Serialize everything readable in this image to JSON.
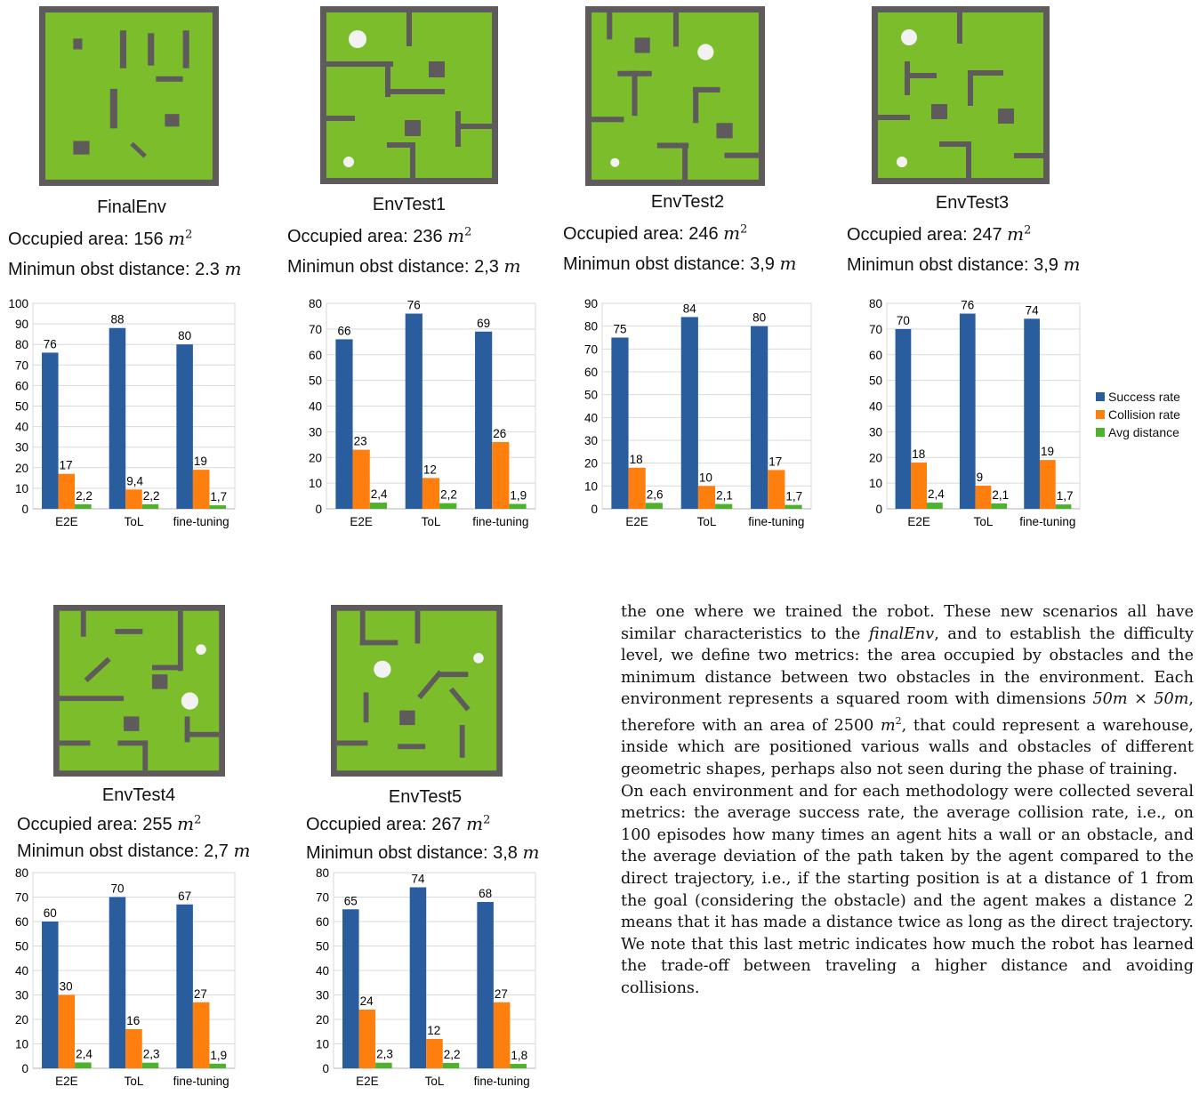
{
  "colors": {
    "success": "#2a5d9e",
    "collision": "#ff7f0e",
    "distance": "#4db32d",
    "map_green": "#7bbd2a",
    "map_wall": "#5f5a5c",
    "map_border": "#5f5a5c"
  },
  "legend": [
    {
      "label": "Success rate",
      "color": "#2a5d9e"
    },
    {
      "label": "Collision rate",
      "color": "#ff7f0e"
    },
    {
      "label": "Avg distance",
      "color": "#4db32d"
    }
  ],
  "environments": [
    {
      "name": "FinalEnv",
      "area_label": "Occupied area: 156 ",
      "area_unit": "m",
      "area_exp": "2",
      "dist_label": "Minimun obst distance: 2.3 ",
      "dist_unit": "m"
    },
    {
      "name": "EnvTest1",
      "area_label": "Occupied area: 236 ",
      "area_unit": "m",
      "area_exp": "2",
      "dist_label": "Minimun obst distance: 2,3 ",
      "dist_unit": "m"
    },
    {
      "name": "EnvTest2",
      "area_label": "Occupied area: 246 ",
      "area_unit": "m",
      "area_exp": "2",
      "dist_label": "Minimun obst distance: 3,9 ",
      "dist_unit": "m"
    },
    {
      "name": "EnvTest3",
      "area_label": "Occupied area: 247 ",
      "area_unit": "m",
      "area_exp": "2",
      "dist_label": "Minimun obst distance: 3,9 ",
      "dist_unit": "m"
    },
    {
      "name": "EnvTest4",
      "area_label": "Occupied area: 255 ",
      "area_unit": "m",
      "area_exp": "2",
      "dist_label": "Minimun obst distance: 2,7 ",
      "dist_unit": "m"
    },
    {
      "name": "EnvTest5",
      "area_label": "Occupied area: 267 ",
      "area_unit": "m",
      "area_exp": "2",
      "dist_label": "Minimun obst distance: 3,8 ",
      "dist_unit": "m"
    }
  ],
  "chart_data": [
    {
      "type": "bar",
      "categories": [
        "E2E",
        "ToL",
        "fine-tuning"
      ],
      "ylim": [
        0,
        100
      ],
      "yticks": [
        "0",
        "10",
        "20",
        "30",
        "40",
        "50",
        "60",
        "70",
        "80",
        "90",
        "100"
      ],
      "series": [
        {
          "name": "Success rate",
          "values": [
            76,
            88,
            80
          ],
          "labels": [
            "76",
            "88",
            "80"
          ]
        },
        {
          "name": "Collision rate",
          "values": [
            17,
            9.4,
            19
          ],
          "labels": [
            "17",
            "9,4",
            "19"
          ]
        },
        {
          "name": "Avg distance",
          "values": [
            2.2,
            2.2,
            1.7
          ],
          "labels": [
            "2,2",
            "2,2",
            "1,7"
          ]
        }
      ]
    },
    {
      "type": "bar",
      "categories": [
        "E2E",
        "ToL",
        "fine-tuning"
      ],
      "ylim": [
        0,
        80
      ],
      "yticks": [
        "0",
        "10",
        "20",
        "30",
        "40",
        "50",
        "60",
        "70",
        "80"
      ],
      "series": [
        {
          "name": "Success rate",
          "values": [
            66,
            76,
            69
          ],
          "labels": [
            "66",
            "76",
            "69"
          ]
        },
        {
          "name": "Collision rate",
          "values": [
            23,
            12,
            26
          ],
          "labels": [
            "23",
            "12",
            "26"
          ]
        },
        {
          "name": "Avg distance",
          "values": [
            2.4,
            2.2,
            1.9
          ],
          "labels": [
            "2,4",
            "2,2",
            "1,9"
          ]
        }
      ]
    },
    {
      "type": "bar",
      "categories": [
        "E2E",
        "ToL",
        "fine-tuning"
      ],
      "ylim": [
        0,
        90
      ],
      "yticks": [
        "0",
        "10",
        "20",
        "30",
        "40",
        "50",
        "60",
        "70",
        "80",
        "90"
      ],
      "series": [
        {
          "name": "Success rate",
          "values": [
            75,
            84,
            80
          ],
          "labels": [
            "75",
            "84",
            "80"
          ]
        },
        {
          "name": "Collision rate",
          "values": [
            18,
            10,
            17
          ],
          "labels": [
            "18",
            "10",
            "17"
          ]
        },
        {
          "name": "Avg distance",
          "values": [
            2.6,
            2.1,
            1.7
          ],
          "labels": [
            "2,6",
            "2,1",
            "1,7"
          ]
        }
      ]
    },
    {
      "type": "bar",
      "categories": [
        "E2E",
        "ToL",
        "fine-tuning"
      ],
      "ylim": [
        0,
        80
      ],
      "yticks": [
        "0",
        "10",
        "20",
        "30",
        "40",
        "50",
        "60",
        "70",
        "80"
      ],
      "series": [
        {
          "name": "Success rate",
          "values": [
            70,
            76,
            74
          ],
          "labels": [
            "70",
            "76",
            "74"
          ]
        },
        {
          "name": "Collision rate",
          "values": [
            18,
            9,
            19
          ],
          "labels": [
            "18",
            "9",
            "19"
          ]
        },
        {
          "name": "Avg distance",
          "values": [
            2.4,
            2.1,
            1.7
          ],
          "labels": [
            "2,4",
            "2,1",
            "1,7"
          ]
        }
      ]
    },
    {
      "type": "bar",
      "categories": [
        "E2E",
        "ToL",
        "fine-tuning"
      ],
      "ylim": [
        0,
        80
      ],
      "yticks": [
        "0",
        "10",
        "20",
        "30",
        "40",
        "50",
        "60",
        "70",
        "80"
      ],
      "series": [
        {
          "name": "Success rate",
          "values": [
            60,
            70,
            67
          ],
          "labels": [
            "60",
            "70",
            "67"
          ]
        },
        {
          "name": "Collision rate",
          "values": [
            30,
            16,
            27
          ],
          "labels": [
            "30",
            "16",
            "27"
          ]
        },
        {
          "name": "Avg distance",
          "values": [
            2.4,
            2.3,
            1.9
          ],
          "labels": [
            "2,4",
            "2,3",
            "1,9"
          ]
        }
      ]
    },
    {
      "type": "bar",
      "categories": [
        "E2E",
        "ToL",
        "fine-tuning"
      ],
      "ylim": [
        0,
        80
      ],
      "yticks": [
        "0",
        "10",
        "20",
        "30",
        "40",
        "50",
        "60",
        "70",
        "80"
      ],
      "series": [
        {
          "name": "Success rate",
          "values": [
            65,
            74,
            68
          ],
          "labels": [
            "65",
            "74",
            "68"
          ]
        },
        {
          "name": "Collision rate",
          "values": [
            24,
            12,
            27
          ],
          "labels": [
            "24",
            "12",
            "27"
          ]
        },
        {
          "name": "Avg distance",
          "values": [
            2.3,
            2.2,
            1.8
          ],
          "labels": [
            "2,3",
            "2,2",
            "1,8"
          ]
        }
      ]
    }
  ],
  "text": {
    "p1_a": "the one where we trained the robot. These new scenarios all have similar characteristics to the ",
    "p1_em": "finalEnv",
    "p1_b": ", and to establish the difficulty level, we define two metrics: the area occupied by obstacles and the minimum distance between two obstacles in the environment. Each environment represents a squared room with dimensions ",
    "p1_dim": "50m × 50m",
    "p1_c": ", therefore with an area of 2500 ",
    "p1_unit": "m",
    "p1_exp": "2",
    "p1_d": ", that could represent a warehouse, inside which are positioned various walls and obstacles of different geometric shapes, perhaps also not seen during the phase of training.",
    "p2": "On each environment and for each methodology were collected several metrics: the average success rate, the average collision rate, i.e., on 100 episodes how many times an agent hits a wall or an obstacle, and the average deviation of the path taken by the agent compared to the direct trajectory, i.e., if the starting position is at a distance of 1 from the goal (considering the obstacle) and the agent makes a distance 2 means that it has made a distance twice as long as the direct trajectory. We note that this last metric indicates how much the robot has learned the trade-off between traveling a higher distance and avoiding collisions."
  }
}
